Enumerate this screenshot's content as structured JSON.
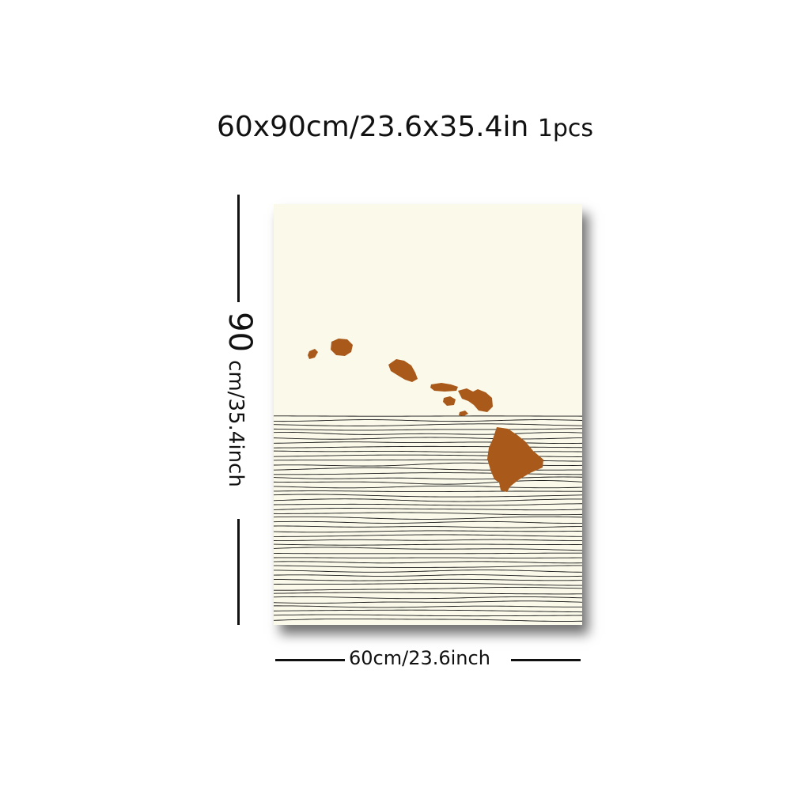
{
  "title": {
    "size_text": "60x90cm/23.6x35.4in",
    "qty_text": "1pcs"
  },
  "height_dim": {
    "value": "90",
    "unit": "cm/35.4inch"
  },
  "width_dim": {
    "label": "60cm/23.6inch"
  },
  "artwork": {
    "subject": "Hawaiian islands over line-drawn ocean",
    "background_color": "#fbf9ea",
    "island_color": "#a9591a",
    "line_color": "#1a1a1a"
  }
}
